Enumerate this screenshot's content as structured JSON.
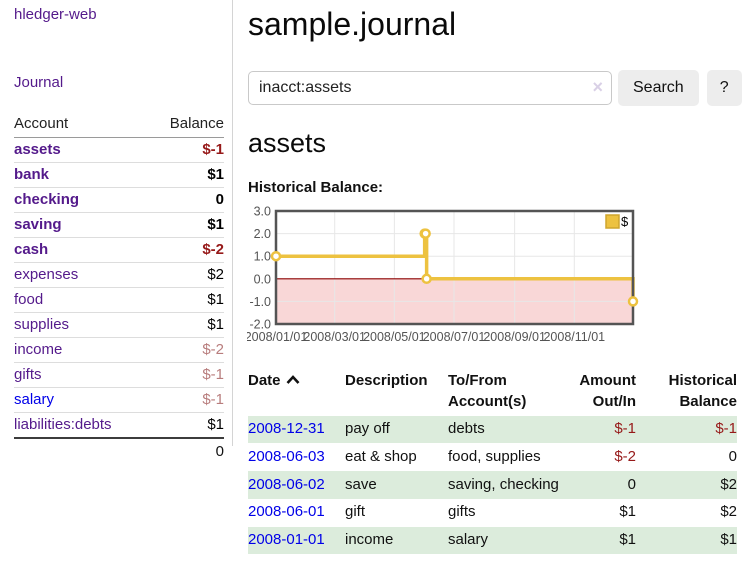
{
  "sidebar": {
    "brand": "hledger-web",
    "nav_journal": "Journal",
    "accounts_table": {
      "headers": {
        "account": "Account",
        "balance": "Balance"
      },
      "rows": [
        {
          "account": "assets",
          "balance": "$-1"
        },
        {
          "account": "bank",
          "balance": "$1"
        },
        {
          "account": "checking",
          "balance": "0"
        },
        {
          "account": "saving",
          "balance": "$1"
        },
        {
          "account": "cash",
          "balance": "$-2"
        },
        {
          "account": "expenses",
          "balance": "$2"
        },
        {
          "account": "food",
          "balance": "$1"
        },
        {
          "account": "supplies",
          "balance": "$1"
        },
        {
          "account": "income",
          "balance": "$-2"
        },
        {
          "account": "gifts",
          "balance": "$-1"
        },
        {
          "account": "salary",
          "balance": "$-1"
        },
        {
          "account": "liabilities:debts",
          "balance": "$1"
        }
      ],
      "total": "0"
    }
  },
  "header": {
    "title": "sample.journal"
  },
  "search": {
    "value": "inacct:assets",
    "clear_icon": "×",
    "button_label": "Search",
    "help_label": "?"
  },
  "main": {
    "account_heading": "assets"
  },
  "icons": {
    "sort": "chevron-up",
    "clear": "x-mark"
  },
  "colors": {
    "link_purple": "#541a8b",
    "link_blue": "#0000e8",
    "negative": "#961919",
    "negative_dim": "#b87d7d",
    "row_green": "#dcecdc",
    "button_bg": "#ededed"
  },
  "chart_data": {
    "type": "line",
    "step": true,
    "title": "Historical Balance:",
    "series": [
      {
        "name": "$",
        "points": [
          {
            "x": "2008-01-01",
            "y": 1
          },
          {
            "x": "2008-06-01",
            "y": 2
          },
          {
            "x": "2008-06-02",
            "y": 2
          },
          {
            "x": "2008-06-03",
            "y": 0
          },
          {
            "x": "2008-12-31",
            "y": -1
          }
        ]
      }
    ],
    "xrange": [
      "2008-01-01",
      "2008-12-31"
    ],
    "ylim": [
      -2,
      3
    ],
    "yticks": [
      {
        "v": 3,
        "label": "3.0"
      },
      {
        "v": 2,
        "label": "2.0"
      },
      {
        "v": 1,
        "label": "1.0"
      },
      {
        "v": 0,
        "label": "0.0"
      },
      {
        "v": -1,
        "label": "-1.0"
      },
      {
        "v": -2,
        "label": "-2.0"
      }
    ],
    "xticks": [
      {
        "d": "2008-01-01",
        "label": "2008/01/01"
      },
      {
        "d": "2008-03-01",
        "label": "2008/03/01"
      },
      {
        "d": "2008-05-01",
        "label": "2008/05/01"
      },
      {
        "d": "2008-07-01",
        "label": "2008/07/01"
      },
      {
        "d": "2008-09-01",
        "label": "2008/09/01"
      },
      {
        "d": "2008-11-01",
        "label": "2008/11/01"
      }
    ],
    "legend_position": "top-right",
    "grid": true,
    "colors": {
      "line": "#EDC240",
      "line_border": "#cfa52e",
      "marker_fill": "#ffffff",
      "negative_region": "#f9d7d7",
      "zero_line": "#8b0000",
      "grid": "#e7e7e7",
      "border": "#545454",
      "tick_text": "#545454"
    }
  },
  "register_table": {
    "headers": {
      "date": "Date",
      "description": "Description",
      "accounts": "To/From Account(s)",
      "amount": "Amount Out/In",
      "balance": "Historical Balance"
    },
    "rows": [
      {
        "date": "2008-12-31",
        "description": "pay off",
        "accounts": "debts",
        "amount": "$-1",
        "balance": "$-1"
      },
      {
        "date": "2008-06-03",
        "description": "eat & shop",
        "accounts": "food, supplies",
        "amount": "$-2",
        "balance": "0"
      },
      {
        "date": "2008-06-02",
        "description": "save",
        "accounts": "saving, checking",
        "amount": "0",
        "balance": "$2"
      },
      {
        "date": "2008-06-01",
        "description": "gift",
        "accounts": "gifts",
        "amount": "$1",
        "balance": "$2"
      },
      {
        "date": "2008-01-01",
        "description": "income",
        "accounts": "salary",
        "amount": "$1",
        "balance": "$1"
      }
    ]
  }
}
